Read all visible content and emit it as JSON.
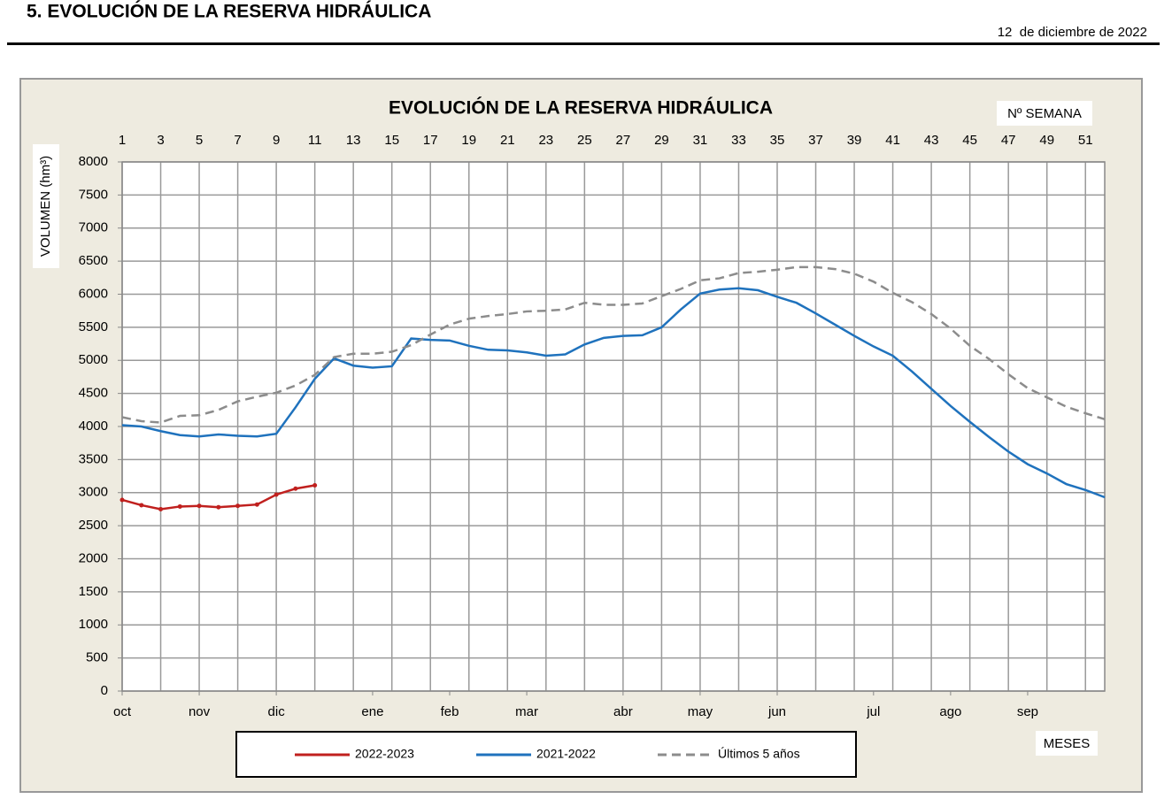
{
  "header": {
    "title": "5. EVOLUCIÓN DE LA RESERVA HIDRÁULICA",
    "date": "12  de diciembre de 2022"
  },
  "chart_data": {
    "type": "line",
    "title": "EVOLUCIÓN DE LA RESERVA HIDRÁULICA",
    "x_label": "Nº SEMANA",
    "x2_label": "MESES",
    "y_label": "VOLUMEN (hm³)",
    "x": [
      1,
      2,
      3,
      4,
      5,
      6,
      7,
      8,
      9,
      10,
      11,
      12,
      13,
      14,
      15,
      16,
      17,
      18,
      19,
      20,
      21,
      22,
      23,
      24,
      25,
      26,
      27,
      28,
      29,
      30,
      31,
      32,
      33,
      34,
      35,
      36,
      37,
      38,
      39,
      40,
      41,
      42,
      43,
      44,
      45,
      46,
      47,
      48,
      49,
      50,
      51,
      52
    ],
    "xlim": [
      1,
      52
    ],
    "xticks": [
      1,
      3,
      5,
      7,
      9,
      11,
      13,
      15,
      17,
      19,
      21,
      23,
      25,
      27,
      29,
      31,
      33,
      35,
      37,
      39,
      41,
      43,
      45,
      47,
      49,
      51
    ],
    "month_ticks": [
      {
        "value": 1,
        "label": "oct"
      },
      {
        "value": 5,
        "label": "nov"
      },
      {
        "value": 9,
        "label": "dic"
      },
      {
        "value": 14,
        "label": "ene"
      },
      {
        "value": 18,
        "label": "feb"
      },
      {
        "value": 22,
        "label": "mar"
      },
      {
        "value": 27,
        "label": "abr"
      },
      {
        "value": 31,
        "label": "may"
      },
      {
        "value": 35,
        "label": "jun"
      },
      {
        "value": 40,
        "label": "jul"
      },
      {
        "value": 44,
        "label": "ago"
      },
      {
        "value": 48,
        "label": "sep"
      }
    ],
    "ylim": [
      0,
      8000
    ],
    "yticks": [
      0,
      500,
      1000,
      1500,
      2000,
      2500,
      3000,
      3500,
      4000,
      4500,
      5000,
      5500,
      6000,
      6500,
      7000,
      7500,
      8000
    ],
    "grid": true,
    "series": [
      {
        "name": "2022-2023",
        "color": "#c0201e",
        "style": "solid",
        "markers": true,
        "values": [
          2890,
          2810,
          2750,
          2790,
          2800,
          2780,
          2800,
          2820,
          2970,
          3060,
          3110,
          null,
          null,
          null,
          null,
          null,
          null,
          null,
          null,
          null,
          null,
          null,
          null,
          null,
          null,
          null,
          null,
          null,
          null,
          null,
          null,
          null,
          null,
          null,
          null,
          null,
          null,
          null,
          null,
          null,
          null,
          null,
          null,
          null,
          null,
          null,
          null,
          null,
          null,
          null,
          null,
          null
        ]
      },
      {
        "name": "2021-2022",
        "color": "#1f72bd",
        "style": "solid",
        "markers": false,
        "values": [
          4020,
          4000,
          3930,
          3870,
          3850,
          3880,
          3860,
          3850,
          3890,
          4290,
          4720,
          5030,
          4920,
          4890,
          4910,
          5330,
          5310,
          5300,
          5220,
          5160,
          5150,
          5120,
          5070,
          5090,
          5240,
          5340,
          5370,
          5380,
          5500,
          5770,
          6010,
          6070,
          6090,
          6060,
          5960,
          5870,
          5710,
          5540,
          5370,
          5210,
          5070,
          4830,
          4570,
          4310,
          4070,
          3840,
          3620,
          3430,
          3290,
          3130,
          3040,
          2930
        ]
      },
      {
        "name": "Últimos 5 años",
        "color": "#8c8c8c",
        "style": "dashed",
        "markers": false,
        "values": [
          4140,
          4080,
          4060,
          4160,
          4170,
          4250,
          4380,
          4450,
          4510,
          4620,
          4780,
          5050,
          5100,
          5100,
          5130,
          5230,
          5390,
          5540,
          5630,
          5670,
          5700,
          5740,
          5750,
          5770,
          5870,
          5840,
          5840,
          5860,
          5970,
          6080,
          6210,
          6240,
          6320,
          6340,
          6370,
          6410,
          6410,
          6380,
          6310,
          6190,
          6020,
          5880,
          5700,
          5480,
          5220,
          5020,
          4790,
          4580,
          4440,
          4300,
          4200,
          4110
        ]
      }
    ]
  }
}
